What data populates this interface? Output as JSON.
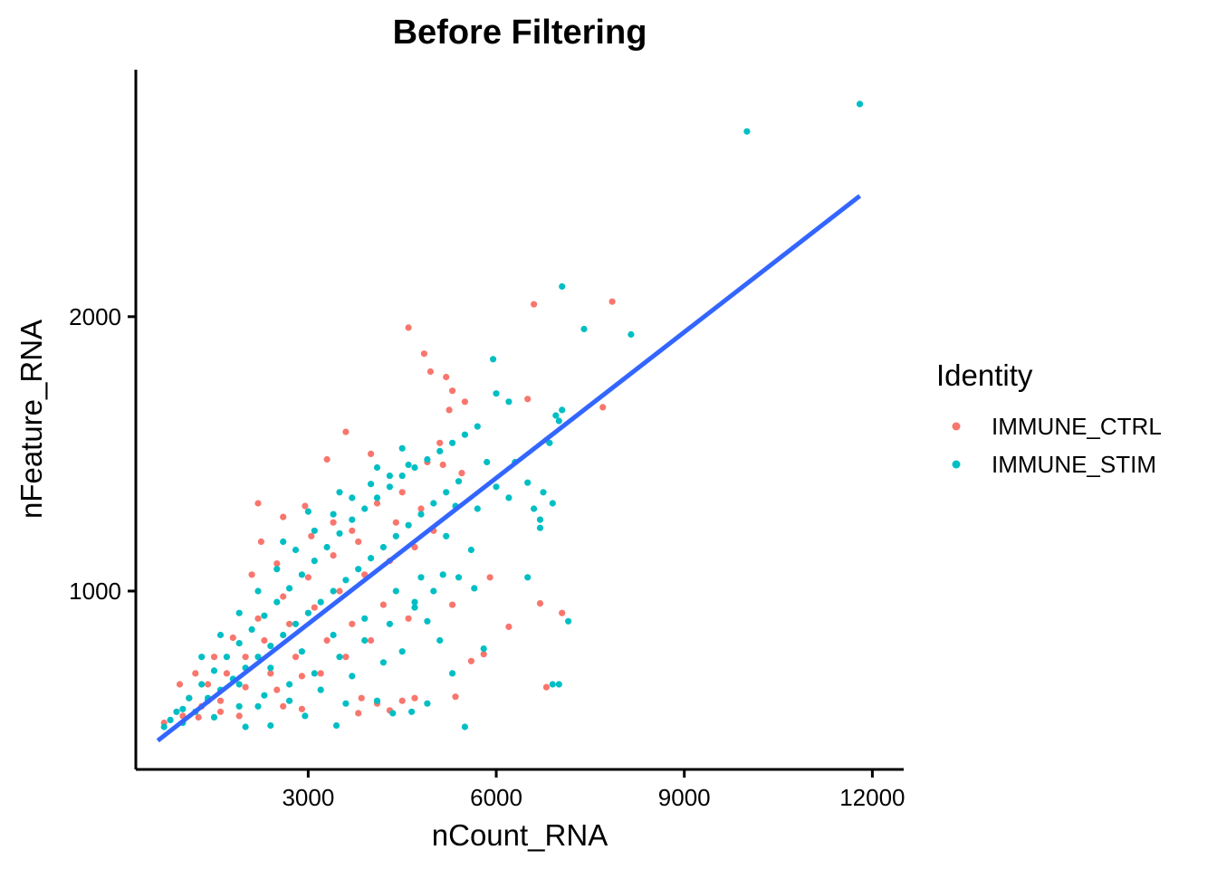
{
  "chart_data": {
    "type": "scatter",
    "title": "Before Filtering",
    "xlabel": "nCount_RNA",
    "ylabel": "nFeature_RNA",
    "xlim": [
      250,
      12500
    ],
    "ylim": [
      350,
      2900
    ],
    "x_ticks": [
      {
        "value": 3000,
        "label": "3000"
      },
      {
        "value": 6000,
        "label": "6000"
      },
      {
        "value": 9000,
        "label": "9000"
      },
      {
        "value": 12000,
        "label": "12000"
      }
    ],
    "y_ticks": [
      {
        "value": 1000,
        "label": "1000"
      },
      {
        "value": 2000,
        "label": "2000"
      }
    ],
    "legend": {
      "title": "Identity",
      "position": "right",
      "items": [
        {
          "label": "IMMUNE_CTRL",
          "color": "#F8766D"
        },
        {
          "label": "IMMUNE_STIM",
          "color": "#00BFC4"
        }
      ]
    },
    "trend_line": {
      "color": "#3366FF",
      "x": [
        600,
        11800
      ],
      "y": [
        455,
        2440
      ]
    },
    "series": [
      {
        "name": "IMMUNE_CTRL",
        "color": "#F8766D",
        "points": [
          [
            6600,
            2045
          ],
          [
            7850,
            2055
          ],
          [
            4600,
            1960
          ],
          [
            4850,
            1865
          ],
          [
            4950,
            1800
          ],
          [
            5200,
            1780
          ],
          [
            5300,
            1730
          ],
          [
            5500,
            1690
          ],
          [
            6500,
            1700
          ],
          [
            7700,
            1670
          ],
          [
            5250,
            1660
          ],
          [
            3600,
            1580
          ],
          [
            5100,
            1540
          ],
          [
            4000,
            1500
          ],
          [
            3300,
            1480
          ],
          [
            4900,
            1470
          ],
          [
            5150,
            1460
          ],
          [
            5450,
            1430
          ],
          [
            6800,
            1550
          ],
          [
            2200,
            1320
          ],
          [
            2950,
            1310
          ],
          [
            2600,
            1270
          ],
          [
            3400,
            1250
          ],
          [
            4100,
            1320
          ],
          [
            4500,
            1360
          ],
          [
            2250,
            1180
          ],
          [
            3050,
            1200
          ],
          [
            3700,
            1220
          ],
          [
            2100,
            1060
          ],
          [
            2500,
            1100
          ],
          [
            6700,
            955
          ],
          [
            7050,
            920
          ],
          [
            5800,
            770
          ],
          [
            5600,
            745
          ],
          [
            6800,
            650
          ],
          [
            3850,
            610
          ],
          [
            4100,
            590
          ],
          [
            4500,
            600
          ],
          [
            3800,
            555
          ],
          [
            4300,
            565
          ],
          [
            2600,
            580
          ],
          [
            2900,
            570
          ],
          [
            1250,
            540
          ],
          [
            1600,
            560
          ],
          [
            1900,
            545
          ],
          [
            700,
            520
          ],
          [
            900,
            560
          ],
          [
            1100,
            610
          ],
          [
            1400,
            660
          ],
          [
            1700,
            700
          ],
          [
            2000,
            760
          ],
          [
            2300,
            820
          ],
          [
            2700,
            880
          ],
          [
            3100,
            940
          ],
          [
            3500,
            1000
          ],
          [
            3900,
            1060
          ],
          [
            4300,
            1110
          ],
          [
            4700,
            1160
          ],
          [
            5000,
            1220
          ],
          [
            4200,
            950
          ],
          [
            3700,
            880
          ],
          [
            3300,
            820
          ],
          [
            2800,
            760
          ],
          [
            2400,
            700
          ],
          [
            2000,
            650
          ],
          [
            1600,
            600
          ],
          [
            1300,
            580
          ],
          [
            1000,
            545
          ],
          [
            1800,
            830
          ],
          [
            1500,
            760
          ],
          [
            1200,
            700
          ],
          [
            2200,
            900
          ],
          [
            2600,
            980
          ],
          [
            3000,
            1050
          ],
          [
            3400,
            1130
          ],
          [
            3800,
            1180
          ],
          [
            4400,
            1250
          ],
          [
            4800,
            1300
          ],
          [
            3200,
            700
          ],
          [
            3600,
            760
          ],
          [
            4000,
            820
          ],
          [
            4600,
            900
          ],
          [
            5300,
            950
          ],
          [
            2500,
            640
          ],
          [
            2900,
            690
          ],
          [
            5350,
            615
          ],
          [
            4700,
            610
          ],
          [
            5900,
            1050
          ],
          [
            6200,
            870
          ],
          [
            950,
            660
          ]
        ]
      },
      {
        "name": "IMMUNE_STIM",
        "color": "#00BFC4",
        "points": [
          [
            11800,
            2775
          ],
          [
            10000,
            2675
          ],
          [
            7050,
            2110
          ],
          [
            7400,
            1955
          ],
          [
            8150,
            1935
          ],
          [
            5950,
            1845
          ],
          [
            6000,
            1720
          ],
          [
            6200,
            1690
          ],
          [
            7050,
            1660
          ],
          [
            6950,
            1640
          ],
          [
            7000,
            1620
          ],
          [
            6850,
            1540
          ],
          [
            5850,
            1470
          ],
          [
            6300,
            1470
          ],
          [
            6500,
            1395
          ],
          [
            6750,
            1360
          ],
          [
            6900,
            1320
          ],
          [
            6600,
            1300
          ],
          [
            6200,
            1340
          ],
          [
            6700,
            1260
          ],
          [
            6700,
            1230
          ],
          [
            7150,
            890
          ],
          [
            6500,
            1050
          ],
          [
            6900,
            660
          ],
          [
            7000,
            660
          ],
          [
            5800,
            790
          ],
          [
            4900,
            890
          ],
          [
            4700,
            960
          ],
          [
            5400,
            1050
          ],
          [
            5600,
            1150
          ],
          [
            4900,
            590
          ],
          [
            4650,
            560
          ],
          [
            5500,
            505
          ],
          [
            4350,
            555
          ],
          [
            4100,
            600
          ],
          [
            3450,
            510
          ],
          [
            2400,
            510
          ],
          [
            2000,
            505
          ],
          [
            700,
            505
          ],
          [
            900,
            560
          ],
          [
            1100,
            610
          ],
          [
            1300,
            660
          ],
          [
            1500,
            710
          ],
          [
            1700,
            760
          ],
          [
            1900,
            810
          ],
          [
            2100,
            860
          ],
          [
            2300,
            910
          ],
          [
            2500,
            960
          ],
          [
            2700,
            1010
          ],
          [
            2900,
            1060
          ],
          [
            3100,
            1110
          ],
          [
            3300,
            1160
          ],
          [
            3500,
            1210
          ],
          [
            3700,
            1260
          ],
          [
            3900,
            1300
          ],
          [
            4100,
            1340
          ],
          [
            4300,
            1380
          ],
          [
            4500,
            1420
          ],
          [
            4700,
            1450
          ],
          [
            4900,
            1480
          ],
          [
            5100,
            1510
          ],
          [
            5300,
            1540
          ],
          [
            5500,
            1570
          ],
          [
            5700,
            1600
          ],
          [
            1000,
            520
          ],
          [
            1200,
            560
          ],
          [
            1400,
            600
          ],
          [
            1600,
            640
          ],
          [
            1800,
            680
          ],
          [
            2000,
            720
          ],
          [
            2200,
            760
          ],
          [
            2400,
            800
          ],
          [
            2600,
            840
          ],
          [
            2800,
            880
          ],
          [
            3000,
            920
          ],
          [
            3200,
            960
          ],
          [
            3400,
            1000
          ],
          [
            3600,
            1040
          ],
          [
            3800,
            1080
          ],
          [
            4000,
            1120
          ],
          [
            4200,
            1160
          ],
          [
            4400,
            1200
          ],
          [
            4600,
            1240
          ],
          [
            4800,
            1280
          ],
          [
            5000,
            1320
          ],
          [
            5200,
            1360
          ],
          [
            5400,
            1400
          ],
          [
            1300,
            760
          ],
          [
            1600,
            840
          ],
          [
            1900,
            920
          ],
          [
            2200,
            1000
          ],
          [
            2500,
            1080
          ],
          [
            2800,
            1150
          ],
          [
            3100,
            1220
          ],
          [
            3400,
            1280
          ],
          [
            3700,
            1340
          ],
          [
            4000,
            1390
          ],
          [
            4300,
            1420
          ],
          [
            4600,
            1460
          ],
          [
            1500,
            540
          ],
          [
            1900,
            580
          ],
          [
            2300,
            620
          ],
          [
            2700,
            660
          ],
          [
            3100,
            700
          ],
          [
            3500,
            760
          ],
          [
            3900,
            820
          ],
          [
            4300,
            880
          ],
          [
            4700,
            940
          ],
          [
            5000,
            1000
          ],
          [
            2200,
            580
          ],
          [
            2700,
            600
          ],
          [
            3200,
            640
          ],
          [
            3700,
            690
          ],
          [
            4200,
            740
          ],
          [
            5100,
            820
          ],
          [
            5300,
            700
          ],
          [
            5650,
            1010
          ],
          [
            5200,
            1200
          ],
          [
            5700,
            1300
          ],
          [
            6000,
            1380
          ],
          [
            4800,
            1050
          ],
          [
            4400,
            1000
          ],
          [
            3900,
            900
          ],
          [
            3400,
            840
          ],
          [
            2900,
            780
          ],
          [
            2400,
            720
          ],
          [
            1900,
            660
          ],
          [
            1400,
            610
          ],
          [
            1000,
            570
          ],
          [
            800,
            530
          ],
          [
            2600,
            1180
          ],
          [
            3000,
            1290
          ],
          [
            3500,
            1360
          ],
          [
            4100,
            1450
          ],
          [
            4500,
            1520
          ],
          [
            5350,
            1310
          ],
          [
            5150,
            1060
          ],
          [
            4500,
            780
          ],
          [
            3600,
            590
          ],
          [
            2950,
            545
          ]
        ]
      }
    ]
  }
}
